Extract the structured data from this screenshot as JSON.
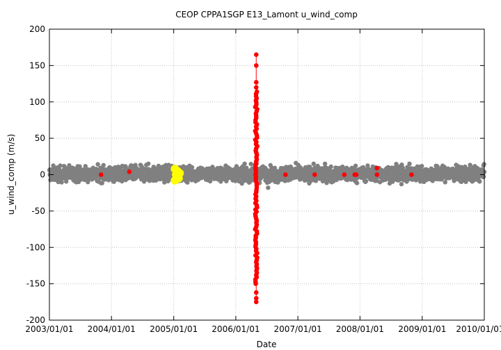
{
  "chart_data": {
    "type": "scatter",
    "title": "CEOP CPPA1SGP E13_Lamont  u_wind_comp",
    "xlabel": "Date",
    "ylabel": "u_wind_comp (m/s)",
    "xlim": [
      "2003/01/01",
      "2010/01/01"
    ],
    "ylim": [
      -200,
      200
    ],
    "yticks": [
      -200,
      -150,
      -100,
      -50,
      0,
      50,
      100,
      150,
      200
    ],
    "xticks": [
      "2003/01/01",
      "2004/01/01",
      "2005/01/01",
      "2006/01/01",
      "2007/01/01",
      "2008/01/01",
      "2009/01/01",
      "2010/01/01"
    ],
    "grid": true,
    "colors": {
      "normal": "#808080",
      "flagged": "#ff0000",
      "highlight": "#ffff00",
      "grid": "#c0c0c0"
    },
    "normal_band": {
      "date_range": [
        "2003/01/01",
        "2010/01/01"
      ],
      "typical_min": -10,
      "typical_max": 12
    },
    "normal_outliers": [
      {
        "date": "2006/07/10",
        "y": -18
      },
      {
        "date": "2006/12/20",
        "y": 16
      },
      {
        "date": "2004/08/05",
        "y": 15
      },
      {
        "date": "2008/09/01",
        "y": -13
      },
      {
        "date": "2003/11/15",
        "y": 13
      }
    ],
    "highlight_points": [
      {
        "date": "2005/01/08",
        "y": 8
      },
      {
        "date": "2005/01/08",
        "y": -8
      },
      {
        "date": "2005/01/15",
        "y": 0
      },
      {
        "date": "2005/01/22",
        "y": 5
      },
      {
        "date": "2005/01/30",
        "y": -5
      },
      {
        "date": "2005/02/05",
        "y": 2
      }
    ],
    "flagged_spike": {
      "date": "2006/05/01",
      "min": -175,
      "max": 165
    },
    "flagged_points": [
      {
        "date": "2003/11/01",
        "y": 0
      },
      {
        "date": "2004/04/15",
        "y": 4
      },
      {
        "date": "2006/05/01",
        "y": 165
      },
      {
        "date": "2006/05/01",
        "y": 150
      },
      {
        "date": "2006/05/01",
        "y": 127
      },
      {
        "date": "2006/05/01",
        "y": 120
      },
      {
        "date": "2006/05/01",
        "y": -162
      },
      {
        "date": "2006/05/01",
        "y": -170
      },
      {
        "date": "2006/05/01",
        "y": -175
      },
      {
        "date": "2006/10/20",
        "y": 0
      },
      {
        "date": "2007/04/10",
        "y": 0
      },
      {
        "date": "2007/10/01",
        "y": 0
      },
      {
        "date": "2007/12/01",
        "y": 0
      },
      {
        "date": "2007/12/10",
        "y": 0
      },
      {
        "date": "2008/04/10",
        "y": 9
      },
      {
        "date": "2008/04/10",
        "y": 0
      },
      {
        "date": "2008/10/30",
        "y": 0
      }
    ]
  }
}
